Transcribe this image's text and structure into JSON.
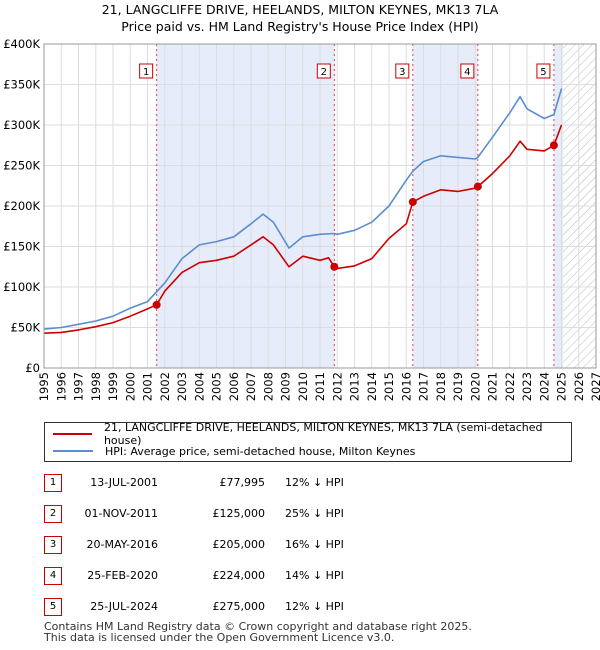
{
  "title_line1": "21, LANGCLIFFE DRIVE, HEELANDS, MILTON KEYNES, MK13 7LA",
  "title_line2": "Price paid vs. HM Land Registry's House Price Index (HPI)",
  "legend": {
    "property": "21, LANGCLIFFE DRIVE, HEELANDS, MILTON KEYNES, MK13 7LA (semi-detached house)",
    "hpi": "HPI: Average price, semi-detached house, Milton Keynes"
  },
  "sales": [
    {
      "num": "1",
      "date": "13-JUL-2001",
      "price": "£77,995",
      "hpi": "12% ↓ HPI"
    },
    {
      "num": "2",
      "date": "01-NOV-2011",
      "price": "£125,000",
      "hpi": "25% ↓ HPI"
    },
    {
      "num": "3",
      "date": "20-MAY-2016",
      "price": "£205,000",
      "hpi": "16% ↓ HPI"
    },
    {
      "num": "4",
      "date": "25-FEB-2020",
      "price": "£224,000",
      "hpi": "14% ↓ HPI"
    },
    {
      "num": "5",
      "date": "25-JUL-2024",
      "price": "£275,000",
      "hpi": "12% ↓ HPI"
    }
  ],
  "footer_line1": "Contains HM Land Registry data © Crown copyright and database right 2025.",
  "footer_line2": "This data is licensed under the Open Government Licence v3.0.",
  "colors": {
    "property": "#cc0000",
    "hpi": "#5a8ed0",
    "shade": "#e6ecfa",
    "grid": "#dddddd"
  },
  "chart_data": {
    "type": "line",
    "xlim": [
      1995,
      2027
    ],
    "ylim": [
      0,
      400000
    ],
    "xticks": [
      "1995",
      "1996",
      "1997",
      "1998",
      "1999",
      "2000",
      "2001",
      "2002",
      "2003",
      "2004",
      "2005",
      "2006",
      "2007",
      "2008",
      "2009",
      "2010",
      "2011",
      "2012",
      "2013",
      "2014",
      "2015",
      "2016",
      "2017",
      "2018",
      "2019",
      "2020",
      "2021",
      "2022",
      "2023",
      "2024",
      "2025",
      "2026",
      "2027"
    ],
    "yticks": [
      {
        "value": 0,
        "label": "£0"
      },
      {
        "value": 50000,
        "label": "£50K"
      },
      {
        "value": 100000,
        "label": "£100K"
      },
      {
        "value": 150000,
        "label": "£150K"
      },
      {
        "value": 200000,
        "label": "£200K"
      },
      {
        "value": 250000,
        "label": "£250K"
      },
      {
        "value": 300000,
        "label": "£300K"
      },
      {
        "value": 350000,
        "label": "£350K"
      },
      {
        "value": 400000,
        "label": "£400K"
      }
    ],
    "grid": true,
    "future_hatch_start": 2025.1,
    "shaded_ranges": [
      [
        2001.53,
        2011.83
      ],
      [
        2016.38,
        2020.15
      ],
      [
        2024.56,
        2025.1
      ]
    ],
    "series": [
      {
        "name": "21, LANGCLIFFE DRIVE, HEELANDS, MILTON KEYNES, MK13 7LA (semi-detached house)",
        "color": "#cc0000",
        "points": [
          [
            1995,
            43000
          ],
          [
            1996,
            44000
          ],
          [
            1997,
            47000
          ],
          [
            1998,
            51000
          ],
          [
            1999,
            56000
          ],
          [
            2000,
            64000
          ],
          [
            2001,
            73000
          ],
          [
            2001.53,
            77995
          ],
          [
            2002,
            95000
          ],
          [
            2003,
            118000
          ],
          [
            2004,
            130000
          ],
          [
            2005,
            133000
          ],
          [
            2006,
            138000
          ],
          [
            2007,
            152000
          ],
          [
            2007.7,
            162000
          ],
          [
            2008.3,
            152000
          ],
          [
            2009.2,
            125000
          ],
          [
            2010,
            138000
          ],
          [
            2011,
            133000
          ],
          [
            2011.5,
            136000
          ],
          [
            2011.83,
            125000
          ],
          [
            2012,
            123000
          ],
          [
            2013,
            126000
          ],
          [
            2014,
            135000
          ],
          [
            2015,
            160000
          ],
          [
            2016,
            178000
          ],
          [
            2016.38,
            205000
          ],
          [
            2017,
            212000
          ],
          [
            2018,
            220000
          ],
          [
            2019,
            218000
          ],
          [
            2020,
            222000
          ],
          [
            2020.15,
            224000
          ],
          [
            2021,
            240000
          ],
          [
            2022,
            262000
          ],
          [
            2022.6,
            280000
          ],
          [
            2023,
            270000
          ],
          [
            2024,
            268000
          ],
          [
            2024.56,
            275000
          ],
          [
            2025,
            300000
          ]
        ]
      },
      {
        "name": "HPI: Average price, semi-detached house, Milton Keynes",
        "color": "#5a8ed0",
        "points": [
          [
            1995,
            48000
          ],
          [
            1996,
            50000
          ],
          [
            1997,
            54000
          ],
          [
            1998,
            58000
          ],
          [
            1999,
            64000
          ],
          [
            2000,
            74000
          ],
          [
            2001,
            82000
          ],
          [
            2002,
            105000
          ],
          [
            2003,
            135000
          ],
          [
            2004,
            152000
          ],
          [
            2005,
            156000
          ],
          [
            2006,
            162000
          ],
          [
            2007,
            178000
          ],
          [
            2007.7,
            190000
          ],
          [
            2008.3,
            180000
          ],
          [
            2009.2,
            148000
          ],
          [
            2010,
            162000
          ],
          [
            2011,
            165000
          ],
          [
            2011.83,
            166000
          ],
          [
            2012,
            165000
          ],
          [
            2013,
            170000
          ],
          [
            2014,
            180000
          ],
          [
            2015,
            200000
          ],
          [
            2016,
            232000
          ],
          [
            2016.38,
            243000
          ],
          [
            2017,
            255000
          ],
          [
            2018,
            262000
          ],
          [
            2019,
            260000
          ],
          [
            2020,
            258000
          ],
          [
            2020.15,
            260000
          ],
          [
            2021,
            285000
          ],
          [
            2022,
            315000
          ],
          [
            2022.6,
            335000
          ],
          [
            2023,
            320000
          ],
          [
            2024,
            308000
          ],
          [
            2024.56,
            313000
          ],
          [
            2025,
            345000
          ]
        ]
      }
    ],
    "markers": [
      {
        "label": "1",
        "x": 2001.53,
        "y": 77995
      },
      {
        "label": "2",
        "x": 2011.83,
        "y": 125000
      },
      {
        "label": "3",
        "x": 2016.38,
        "y": 205000
      },
      {
        "label": "4",
        "x": 2020.15,
        "y": 224000
      },
      {
        "label": "5",
        "x": 2024.56,
        "y": 275000
      }
    ]
  }
}
